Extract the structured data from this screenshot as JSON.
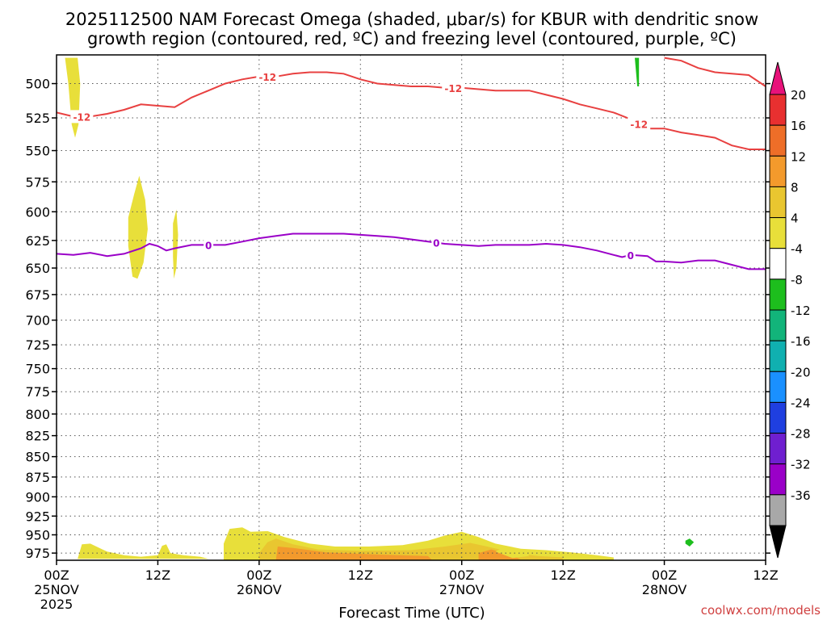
{
  "title_lines": [
    "2025112500 NAM Forecast Omega (shaded, μbar/s) for KBUR with dendritic snow",
    "growth region (contoured, red, ºC) and freezing level (contoured, purple, ºC)"
  ],
  "credit": "coolwx.com/models",
  "colors": {
    "dgz_contour": "#e84040",
    "freezing_contour": "#9a00c8",
    "terrain": "#a0522d",
    "grid": "#555555"
  },
  "chart_data": {
    "type": "heatmap",
    "xlabel": "Forecast Time (UTC)",
    "ylabel": "",
    "x_unit": "forecast hour",
    "xlim": [
      0,
      84
    ],
    "ylim_pressure_hPa": [
      985,
      480
    ],
    "y_ticks": [
      500,
      525,
      550,
      575,
      600,
      625,
      650,
      675,
      700,
      725,
      750,
      775,
      800,
      825,
      850,
      875,
      900,
      925,
      950,
      975
    ],
    "x_ticks": [
      {
        "hour": 0,
        "label": "00Z",
        "label2": "25NOV",
        "label3": "2025"
      },
      {
        "hour": 12,
        "label": "12Z",
        "label2": "",
        "label3": ""
      },
      {
        "hour": 24,
        "label": "00Z",
        "label2": "26NOV",
        "label3": ""
      },
      {
        "hour": 36,
        "label": "12Z",
        "label2": "",
        "label3": ""
      },
      {
        "hour": 48,
        "label": "00Z",
        "label2": "27NOV",
        "label3": ""
      },
      {
        "hour": 60,
        "label": "12Z",
        "label2": "",
        "label3": ""
      },
      {
        "hour": 72,
        "label": "00Z",
        "label2": "28NOV",
        "label3": ""
      },
      {
        "hour": 84,
        "label": "12Z",
        "label2": "",
        "label3": ""
      }
    ],
    "grid": true,
    "colorbar": {
      "levels": [
        20,
        16,
        12,
        8,
        4,
        -4,
        -8,
        -12,
        -16,
        -20,
        -24,
        -28,
        -32,
        -36
      ],
      "colors": [
        "#e83030",
        "#ee6e28",
        "#f39a2c",
        "#e9c630",
        "#e8df3a",
        "#ffffff",
        "#1dbe1d",
        "#12b47a",
        "#10b0b0",
        "#1a90ff",
        "#1f3fe0",
        "#6f1fd0",
        "#9a00c8",
        "#a8a8a8"
      ],
      "over_color": "#e8127a",
      "under_color": "#000000",
      "position": "right"
    },
    "contours": [
      {
        "field": "temperature",
        "level": -12,
        "label": "-12",
        "color": "#e84040",
        "points": [
          [
            0,
            521
          ],
          [
            2,
            524
          ],
          [
            4,
            524
          ],
          [
            6,
            522
          ],
          [
            8,
            519
          ],
          [
            10,
            515
          ],
          [
            12,
            516
          ],
          [
            14,
            517
          ],
          [
            16,
            510
          ],
          [
            18,
            505
          ],
          [
            20,
            500
          ],
          [
            22,
            497
          ],
          [
            24,
            495
          ],
          [
            26,
            495
          ],
          [
            28,
            493
          ],
          [
            30,
            492
          ],
          [
            32,
            492
          ],
          [
            34,
            493
          ],
          [
            36,
            497
          ],
          [
            38,
            500
          ],
          [
            40,
            501
          ],
          [
            42,
            502
          ],
          [
            44,
            502
          ],
          [
            46,
            503
          ],
          [
            48,
            503
          ],
          [
            50,
            504
          ],
          [
            52,
            505
          ],
          [
            54,
            505
          ],
          [
            56,
            505
          ],
          [
            58,
            508
          ],
          [
            60,
            511
          ],
          [
            62,
            515
          ],
          [
            64,
            518
          ],
          [
            66,
            521
          ],
          [
            68,
            526
          ],
          [
            70,
            533
          ],
          [
            72,
            533
          ],
          [
            74,
            536
          ],
          [
            76,
            538
          ],
          [
            78,
            540
          ],
          [
            80,
            546
          ],
          [
            82,
            549
          ],
          [
            84,
            549
          ]
        ],
        "label_hours": [
          3,
          25,
          47,
          69
        ]
      },
      {
        "field": "temperature",
        "level": -12,
        "label": "-12",
        "color": "#e84040",
        "points": [
          [
            72,
            482
          ],
          [
            74,
            484
          ],
          [
            76,
            489
          ],
          [
            78,
            492
          ],
          [
            80,
            493
          ],
          [
            82,
            494
          ],
          [
            84,
            502
          ]
        ],
        "label_hours": []
      },
      {
        "field": "temperature",
        "level": 0,
        "label": "0",
        "color": "#9a00c8",
        "points": [
          [
            0,
            637
          ],
          [
            2,
            638
          ],
          [
            4,
            636
          ],
          [
            6,
            639
          ],
          [
            8,
            637
          ],
          [
            10,
            632
          ],
          [
            11,
            628
          ],
          [
            12,
            630
          ],
          [
            13,
            634
          ],
          [
            14,
            632
          ],
          [
            16,
            629
          ],
          [
            18,
            629
          ],
          [
            20,
            629
          ],
          [
            22,
            626
          ],
          [
            24,
            623
          ],
          [
            26,
            621
          ],
          [
            28,
            619
          ],
          [
            30,
            619
          ],
          [
            32,
            619
          ],
          [
            34,
            619
          ],
          [
            36,
            620
          ],
          [
            38,
            621
          ],
          [
            40,
            622
          ],
          [
            42,
            624
          ],
          [
            44,
            626
          ],
          [
            46,
            628
          ],
          [
            48,
            629
          ],
          [
            50,
            630
          ],
          [
            52,
            629
          ],
          [
            54,
            629
          ],
          [
            56,
            629
          ],
          [
            58,
            628
          ],
          [
            60,
            629
          ],
          [
            62,
            631
          ],
          [
            64,
            634
          ],
          [
            66,
            638
          ],
          [
            67,
            640
          ],
          [
            68,
            638
          ],
          [
            70,
            639
          ],
          [
            71,
            644
          ],
          [
            72,
            644
          ],
          [
            74,
            645
          ],
          [
            76,
            643
          ],
          [
            78,
            643
          ],
          [
            80,
            647
          ],
          [
            82,
            651
          ],
          [
            84,
            651
          ]
        ],
        "label_hours": [
          18,
          45,
          68
        ]
      }
    ],
    "shaded_regions": [
      {
        "omega_min": 4,
        "omega_max": 8,
        "color": "#e8df3a",
        "points": [
          [
            1,
            482
          ],
          [
            2.5,
            482
          ],
          [
            2.8,
            500
          ],
          [
            2.6,
            530
          ],
          [
            2.2,
            540
          ],
          [
            1.8,
            530
          ],
          [
            1.4,
            500
          ]
        ]
      },
      {
        "omega_min": 4,
        "omega_max": 8,
        "color": "#e8df3a",
        "points": [
          [
            8.5,
            605
          ],
          [
            9.2,
            585
          ],
          [
            9.8,
            570
          ],
          [
            10.5,
            590
          ],
          [
            10.8,
            615
          ],
          [
            10.3,
            645
          ],
          [
            9.6,
            660
          ],
          [
            9,
            658
          ],
          [
            8.5,
            630
          ]
        ]
      },
      {
        "omega_min": 4,
        "omega_max": 8,
        "color": "#e8df3a",
        "points": [
          [
            13.8,
            610
          ],
          [
            14.2,
            598
          ],
          [
            14.4,
            620
          ],
          [
            14.2,
            650
          ],
          [
            13.9,
            660
          ],
          [
            13.8,
            640
          ]
        ]
      },
      {
        "omega_min": 4,
        "omega_max": 8,
        "color": "#e8df3a",
        "points": [
          [
            2.5,
            983
          ],
          [
            3,
            963
          ],
          [
            4,
            962
          ],
          [
            6,
            973
          ],
          [
            8,
            978
          ],
          [
            10,
            980
          ],
          [
            12,
            978
          ],
          [
            12.5,
            965
          ],
          [
            13,
            963
          ],
          [
            13.5,
            975
          ],
          [
            15,
            978
          ],
          [
            17,
            980
          ],
          [
            18,
            983
          ]
        ]
      },
      {
        "omega_min": 4,
        "omega_max": 8,
        "color": "#e8df3a",
        "points": [
          [
            19.8,
            962
          ],
          [
            20.5,
            942
          ],
          [
            22,
            940
          ],
          [
            23,
            946
          ],
          [
            25,
            945
          ],
          [
            27,
            953
          ],
          [
            30,
            962
          ],
          [
            33,
            966
          ],
          [
            37,
            966
          ],
          [
            41,
            964
          ],
          [
            44,
            958
          ],
          [
            46,
            951
          ],
          [
            48,
            946
          ],
          [
            50,
            953
          ],
          [
            52,
            962
          ],
          [
            55,
            969
          ],
          [
            58,
            971
          ],
          [
            61,
            974
          ],
          [
            64,
            978
          ],
          [
            66,
            981
          ],
          [
            66,
            985
          ],
          [
            19.8,
            985
          ]
        ]
      },
      {
        "omega_min": 8,
        "omega_max": 12,
        "color": "#e9c630",
        "points": [
          [
            24,
            975
          ],
          [
            25,
            960
          ],
          [
            26,
            955
          ],
          [
            28,
            963
          ],
          [
            31,
            970
          ],
          [
            36,
            972
          ],
          [
            42,
            971
          ],
          [
            46,
            966
          ],
          [
            49,
            961
          ],
          [
            51,
            966
          ],
          [
            54,
            974
          ],
          [
            57,
            979
          ],
          [
            60,
            981
          ],
          [
            60,
            985
          ],
          [
            24,
            985
          ]
        ]
      },
      {
        "omega_min": 12,
        "omega_max": 16,
        "color": "#f39a2c",
        "points": [
          [
            26,
            983
          ],
          [
            26.2,
            966
          ],
          [
            28,
            968
          ],
          [
            32,
            974
          ],
          [
            38,
            977
          ],
          [
            44,
            979
          ],
          [
            44.5,
            985
          ],
          [
            26,
            985
          ]
        ]
      },
      {
        "omega_min": 12,
        "omega_max": 16,
        "color": "#f39a2c",
        "points": [
          [
            50,
            975
          ],
          [
            51.5,
            970
          ],
          [
            54,
            978
          ],
          [
            55,
            984
          ],
          [
            50,
            985
          ]
        ]
      },
      {
        "omega_min": 4,
        "omega_max": 8,
        "color": "#e8df3a",
        "points": [
          [
            52,
            973
          ],
          [
            53,
            967
          ],
          [
            55.5,
            971
          ],
          [
            56,
            979
          ],
          [
            54,
            982
          ]
        ]
      },
      {
        "omega_min": -8,
        "omega_max": -4,
        "color": "#1dbe1d",
        "points": [
          [
            68.5,
            482
          ],
          [
            69,
            482
          ],
          [
            69,
            502
          ],
          [
            68.8,
            502
          ]
        ]
      },
      {
        "omega_min": -8,
        "omega_max": -4,
        "color": "#1dbe1d",
        "points": [
          [
            74.5,
            958
          ],
          [
            75,
            955
          ],
          [
            75.5,
            960
          ],
          [
            75,
            966
          ],
          [
            74.5,
            962
          ]
        ]
      }
    ],
    "terrain_pressure_hPa": 985
  }
}
